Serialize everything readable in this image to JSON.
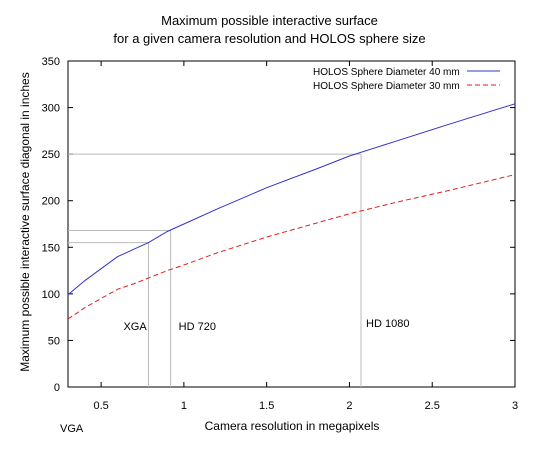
{
  "chart_data": {
    "type": "line",
    "title": "Maximum possible interactive surface",
    "subtitle": "for a given camera resolution and HOLOS sphere size",
    "xlabel": "Camera resolution in megapixels",
    "ylabel": "Maximum possible interactive surface diagonal in inches",
    "xlim": [
      0.3,
      3
    ],
    "ylim": [
      0,
      350
    ],
    "xticks": [
      0.5,
      1,
      1.5,
      2,
      2.5,
      3
    ],
    "xtick_labels": [
      "0.5",
      "1",
      "1.5",
      "2",
      "2.5",
      "3"
    ],
    "yticks": [
      0,
      50,
      100,
      150,
      200,
      250,
      300,
      350
    ],
    "ytick_labels": [
      "0",
      "50",
      "100",
      "150",
      "200",
      "250",
      "300",
      "350"
    ],
    "grid": false,
    "legend_position": "top-right",
    "series": [
      {
        "name": "HOLOS Sphere Diameter 40 mm",
        "color": "#3333cc",
        "style": "solid",
        "x": [
          0.3,
          0.4,
          0.5,
          0.6,
          0.7,
          0.786,
          0.9,
          1.0,
          1.2,
          1.5,
          1.8,
          2.0,
          2.3,
          2.6,
          3.0
        ],
        "y": [
          99,
          114,
          127,
          140,
          148,
          155,
          167,
          175,
          191,
          214,
          234,
          248,
          265,
          282,
          304
        ]
      },
      {
        "name": "HOLOS Sphere Diameter 30 mm",
        "color": "#dd2222",
        "style": "dashed",
        "x": [
          0.3,
          0.4,
          0.5,
          0.6,
          0.7,
          0.8,
          0.9,
          1.0,
          1.2,
          1.5,
          1.8,
          2.0,
          2.3,
          2.6,
          3.0
        ],
        "y": [
          73,
          85,
          95,
          105,
          111,
          118,
          125,
          131,
          144,
          161,
          176,
          186,
          199,
          211,
          228
        ]
      }
    ],
    "annotations": [
      {
        "label": "VGA",
        "x": 0.3
      },
      {
        "label": "XGA",
        "x": 0.786,
        "y_ref": 155
      },
      {
        "label": "HD 720",
        "x": 0.92,
        "y_ref": 168
      },
      {
        "label": "HD 1080",
        "x": 2.07,
        "y_ref": 250
      }
    ]
  }
}
